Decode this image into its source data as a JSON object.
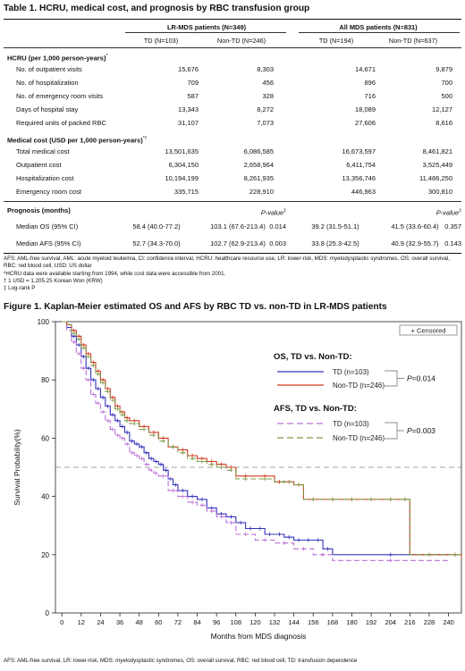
{
  "table": {
    "title": "Table 1. HCRU, medical cost, and prognosis by RBC transfusion group",
    "groups": [
      "LR-MDS patients (N=349)",
      "All MDS patients (N=831)"
    ],
    "subheaders": [
      "TD (N=103)",
      "Non-TD (N=246)",
      "TD (N=194)",
      "Non-TD (N=637)"
    ],
    "hcru_header": "HCRU (per 1,000 person-years)",
    "hcru_sup": "*",
    "hcru_rows": [
      {
        "label": "No. of outpatient visits",
        "v": [
          "15,676",
          "8,303",
          "14,671",
          "9,879"
        ]
      },
      {
        "label": "No. of hospitalization",
        "v": [
          "709",
          "456",
          "896",
          "700"
        ]
      },
      {
        "label": "No. of emergency room visits",
        "v": [
          "587",
          "328",
          "716",
          "500"
        ]
      },
      {
        "label": "Days of hospital stay",
        "v": [
          "13,343",
          "8,272",
          "18,089",
          "12,127"
        ]
      },
      {
        "label": "Required units of packed RBC",
        "v": [
          "31,107",
          "7,073",
          "27,606",
          "8,616"
        ]
      }
    ],
    "cost_header": "Medical cost (USD per 1,000 person-years)",
    "cost_sup": "*†",
    "cost_rows": [
      {
        "label": "Total medical cost",
        "v": [
          "13,501,635",
          "6,086,585",
          "16,673,597",
          "8,461,821"
        ]
      },
      {
        "label": "Outpatient cost",
        "v": [
          "6,304,150",
          "2,658,964",
          "6,411,754",
          "3,525,449"
        ]
      },
      {
        "label": "Hospitalization cost",
        "v": [
          "10,194,199",
          "8,261,935",
          "13,356,746",
          "11,486,250"
        ]
      },
      {
        "label": "Emergency room cost",
        "v": [
          "335,715",
          "228,910",
          "446,963",
          "300,810"
        ]
      }
    ],
    "prog_header": "Prognosis (months)",
    "pvalue_label": "P-value",
    "pvalue_sup": "‡",
    "prog_rows": [
      {
        "label": "Median OS (95% CI)",
        "v": [
          "58.4 (40.0-77.2)",
          "103.1 (67.6-213.4)",
          "39.2 (31.5-51.1)",
          "41.5 (33.6-60.4)"
        ],
        "p": [
          "0.014",
          "0.357"
        ]
      },
      {
        "label": "Median AFS (95% CI)",
        "v": [
          "52.7 (34.3-70.0)",
          "102.7 (62.9-213.4)",
          "33.8 (25.3-42.5)",
          "40.9 (32.9-55.7)"
        ],
        "p": [
          "0.003",
          "0.143"
        ]
      }
    ],
    "notes": [
      "AFS: AML-free survival, AML: acute myeloid leukemia, CI: confidence interval, HCRU: healthcare resource use, LR: lower-risk, MDS: myelodysplastic syndromes, OS: overall survival, RBC: red blood cell, USD: US dollar",
      "*HCRU data were available starting from 1994, while cost data were accessible from 2001.",
      "† 1 USD = 1,205.25 Korean Won (KRW)",
      "‡ Log-rank P"
    ]
  },
  "figure": {
    "title": "Figure 1. Kaplan-Meier estimated OS and AFS by RBC TD vs. non-TD in LR-MDS patients",
    "footnote": "AFS: AML-free survival, LR: lower-risk, MDS: myelodysplastic syndromes, OS: overall survival, RBC: red blood cell, TD: transfusion dependence"
  },
  "chart_data": {
    "type": "line",
    "xlabel": "Months from MDS diagnosis",
    "ylabel": "Survival Probability(%)",
    "xlim": [
      -4,
      248
    ],
    "ylim": [
      0,
      100
    ],
    "xticks": [
      0,
      12,
      24,
      36,
      48,
      60,
      72,
      84,
      96,
      108,
      120,
      132,
      144,
      156,
      168,
      180,
      192,
      204,
      216,
      228,
      240
    ],
    "yticks": [
      0,
      20,
      40,
      60,
      80,
      100
    ],
    "reference_line": 50,
    "censored_label": "+ Censored",
    "legend": {
      "os_title": "OS, TD vs. Non-TD:",
      "afs_title": "AFS, TD vs. Non-TD:",
      "p_symbol": "P",
      "os_p": "=0.014",
      "afs_p": "=0.003"
    },
    "colors": {
      "os_td": "#3333bb",
      "os_nontd": "#d23a1f",
      "afs_td": "#b96fd6",
      "afs_nontd": "#7f9a4a",
      "ref": "#888888"
    },
    "series": [
      {
        "key": "os_td",
        "name": "TD (n=103)",
        "dashed": false,
        "x": [
          0,
          3,
          6,
          9,
          12,
          15,
          18,
          21,
          24,
          27,
          30,
          33,
          36,
          39,
          42,
          45,
          48,
          51,
          54,
          57,
          60,
          63,
          66,
          69,
          72,
          78,
          84,
          90,
          96,
          102,
          108,
          114,
          120,
          126,
          132,
          138,
          144,
          150,
          156,
          162,
          168,
          240
        ],
        "y": [
          100,
          98,
          95,
          92,
          88,
          84,
          80,
          77,
          74,
          71,
          68,
          66,
          64,
          62,
          59,
          58,
          57,
          55,
          53,
          52,
          51,
          49,
          46,
          44,
          42,
          40,
          39,
          36,
          34,
          33,
          31,
          29,
          29,
          27,
          27,
          26,
          25,
          25,
          25,
          22,
          20,
          20
        ]
      },
      {
        "key": "os_nontd",
        "name": "Non-TD (n=246)",
        "dashed": false,
        "x": [
          0,
          3,
          6,
          9,
          12,
          15,
          18,
          21,
          24,
          27,
          30,
          33,
          36,
          39,
          42,
          48,
          54,
          60,
          66,
          72,
          78,
          84,
          90,
          96,
          102,
          108,
          120,
          132,
          138,
          144,
          150,
          162,
          174,
          186,
          198,
          210,
          216,
          240,
          248
        ],
        "y": [
          100,
          99,
          97,
          95,
          92,
          89,
          86,
          83,
          80,
          77,
          74,
          71,
          69,
          67,
          66,
          64,
          62,
          60,
          57,
          56,
          54,
          53,
          52,
          51,
          50,
          47,
          47,
          45,
          45,
          44,
          39,
          39,
          39,
          39,
          39,
          39,
          20,
          20,
          19
        ]
      },
      {
        "key": "afs_td",
        "name": "TD (n=103)",
        "dashed": true,
        "x": [
          0,
          3,
          6,
          9,
          12,
          15,
          18,
          21,
          24,
          27,
          30,
          33,
          36,
          39,
          42,
          45,
          48,
          51,
          54,
          57,
          60,
          66,
          72,
          78,
          84,
          90,
          96,
          102,
          108,
          120,
          132,
          144,
          156,
          168,
          240
        ],
        "y": [
          100,
          97,
          93,
          89,
          84,
          80,
          75,
          72,
          69,
          66,
          63,
          61,
          60,
          58,
          55,
          54,
          53,
          51,
          49,
          48,
          47,
          42,
          40,
          38,
          37,
          35,
          33,
          31,
          27,
          25,
          24,
          22,
          20,
          18,
          18
        ]
      },
      {
        "key": "afs_nontd",
        "name": "Non-TD (n=246)",
        "dashed": true,
        "x": [
          0,
          3,
          6,
          9,
          12,
          15,
          18,
          21,
          24,
          27,
          30,
          33,
          36,
          39,
          42,
          48,
          54,
          60,
          66,
          72,
          78,
          84,
          90,
          96,
          102,
          108,
          120,
          132,
          144,
          150,
          162,
          174,
          186,
          198,
          210,
          216,
          240,
          248
        ],
        "y": [
          100,
          99,
          96,
          94,
          91,
          88,
          85,
          82,
          79,
          76,
          73,
          70,
          68,
          66,
          65,
          63,
          61,
          59,
          57,
          55,
          53,
          52,
          51,
          50,
          49,
          46,
          46,
          45,
          44,
          39,
          39,
          39,
          39,
          39,
          39,
          20,
          20,
          19
        ]
      }
    ]
  }
}
